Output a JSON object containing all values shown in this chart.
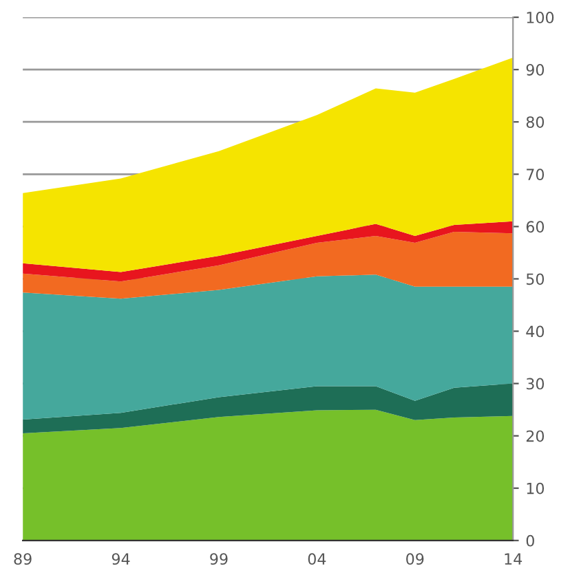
{
  "chart_data": {
    "type": "area",
    "stacked": true,
    "x": [
      1989,
      1994,
      1999,
      2004,
      2007,
      2009,
      2011,
      2014
    ],
    "series": [
      {
        "color": "#76c02a",
        "values": [
          20.5,
          21.5,
          23.6,
          24.9,
          25,
          23,
          23.5,
          23.8
        ]
      },
      {
        "color": "#1e6e56",
        "values": [
          2.6,
          2.9,
          3.8,
          4.6,
          4.5,
          3.7,
          5.7,
          6.2
        ]
      },
      {
        "color": "#45a89c",
        "values": [
          24.3,
          21.8,
          20.5,
          21,
          21.3,
          21.8,
          19.3,
          18.5
        ]
      },
      {
        "color": "#f26a21",
        "values": [
          3.6,
          3.3,
          4.7,
          6.4,
          7.4,
          8.4,
          10.5,
          10.2
        ]
      },
      {
        "color": "#e8151e",
        "values": [
          2,
          1.8,
          1.8,
          1.3,
          2.3,
          1.3,
          1.3,
          2.3
        ]
      },
      {
        "color": "#f5e400",
        "values": [
          13.4,
          17.9,
          20,
          23.1,
          25.9,
          27.4,
          27.9,
          31.3
        ]
      }
    ],
    "xlim": [
      1989,
      2014
    ],
    "xticks": [
      {
        "value": 1989,
        "label": "89"
      },
      {
        "value": 1994,
        "label": "94"
      },
      {
        "value": 1999,
        "label": "99"
      },
      {
        "value": 2004,
        "label": "04"
      },
      {
        "value": 2009,
        "label": "09"
      },
      {
        "value": 2014,
        "label": "14"
      }
    ],
    "ylim": [
      0,
      100
    ],
    "yticks": [
      0,
      10,
      20,
      30,
      40,
      50,
      60,
      70,
      80,
      90,
      100
    ],
    "grid": "y"
  }
}
